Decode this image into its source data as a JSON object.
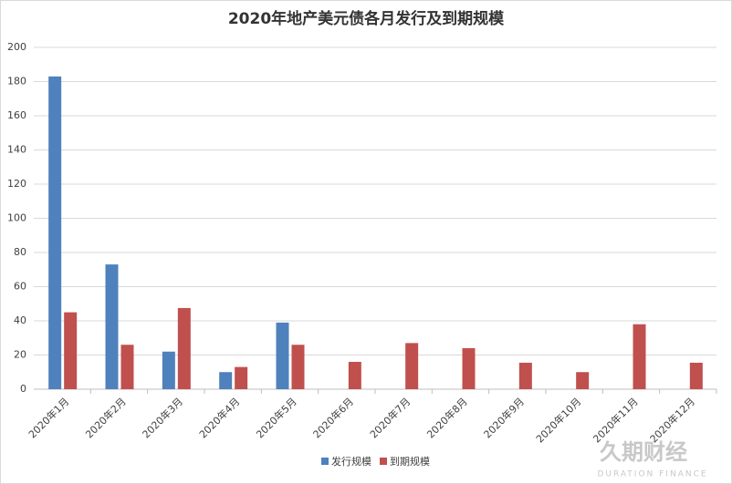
{
  "chart_data": {
    "type": "bar",
    "title": "2020年地产美元债各月发行及到期规模",
    "categories": [
      "2020年1月",
      "2020年2月",
      "2020年3月",
      "2020年4月",
      "2020年5月",
      "2020年6月",
      "2020年7月",
      "2020年8月",
      "2020年9月",
      "2020年10月",
      "2020年11月",
      "2020年12月"
    ],
    "series": [
      {
        "name": "发行规模",
        "color": "#4f81bd",
        "values": [
          183,
          73,
          22,
          10,
          39,
          0,
          0,
          0,
          0,
          0,
          0,
          0
        ]
      },
      {
        "name": "到期规模",
        "color": "#c0504d",
        "values": [
          45,
          26,
          47.5,
          13,
          26,
          16,
          27,
          24,
          15.5,
          10,
          38,
          15.5
        ]
      }
    ],
    "ylim": [
      0,
      200
    ],
    "yticks": [
      0,
      20,
      40,
      60,
      80,
      100,
      120,
      140,
      160,
      180,
      200
    ],
    "grid": true,
    "legend": "bottom"
  },
  "watermark": {
    "cn": "久期财经",
    "en": "DURATION FINANCE"
  }
}
